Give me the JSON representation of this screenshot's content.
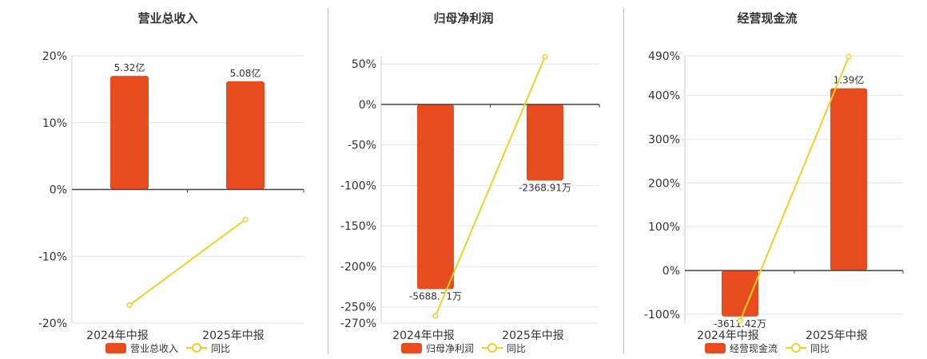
{
  "colors": {
    "bar": "#e84c1e",
    "line": "#f2d023",
    "grid": "#e4e4ee",
    "axis": "#444444",
    "text": "#333333",
    "title": "#333333"
  },
  "chart_data": [
    {
      "type": "bar",
      "title": "营业总收入",
      "categories": [
        "2024年中报",
        "2025年中报"
      ],
      "series": [
        {
          "name": "营业总收入",
          "type": "bar",
          "labels": [
            "5.32亿",
            "5.08亿"
          ]
        },
        {
          "name": "同比",
          "type": "line",
          "values": [
            -17.3,
            -4.5
          ]
        }
      ],
      "y_ticks": [
        "20%",
        "10%",
        "0%",
        "-10%",
        "-20%"
      ],
      "y_tick_values": [
        20,
        10,
        0,
        -10,
        -20
      ],
      "ylim": [
        -20,
        20
      ],
      "bar_heights": [
        17,
        16.2
      ],
      "legend": {
        "position": "bottom",
        "items": [
          "营业总收入",
          "同比"
        ]
      }
    },
    {
      "type": "bar",
      "title": "归母净利润",
      "categories": [
        "2024年中报",
        "2025年中报"
      ],
      "series": [
        {
          "name": "归母净利润",
          "type": "bar",
          "labels": [
            "-5688.71万",
            "-2368.91万"
          ]
        },
        {
          "name": "同比",
          "type": "line",
          "values": [
            -261,
            59
          ]
        }
      ],
      "y_ticks": [
        "50%",
        "0%",
        "-50%",
        "-100%",
        "-150%",
        "-200%",
        "-250%",
        "-270%"
      ],
      "y_tick_values": [
        50,
        0,
        -50,
        -100,
        -150,
        -200,
        -250,
        -270
      ],
      "ylim": [
        -270,
        60
      ],
      "bar_heights": [
        -228,
        -94
      ],
      "legend": {
        "position": "bottom",
        "items": [
          "归母净利润",
          "同比"
        ]
      }
    },
    {
      "type": "bar",
      "title": "经营现金流",
      "categories": [
        "2024年中报",
        "2025年中报"
      ],
      "series": [
        {
          "name": "经营现金流",
          "type": "bar",
          "labels": [
            "-3611.42万",
            "1.39亿"
          ]
        },
        {
          "name": "同比",
          "type": "line",
          "values": [
            -115,
            488
          ]
        }
      ],
      "y_ticks": [
        "490%",
        "400%",
        "300%",
        "200%",
        "100%",
        "0%",
        "-100%"
      ],
      "y_tick_values": [
        490,
        400,
        300,
        200,
        100,
        0,
        -100
      ],
      "ylim": [
        -120,
        490
      ],
      "bar_heights": [
        -105,
        416
      ],
      "legend": {
        "position": "bottom",
        "items": [
          "经营现金流",
          "同比"
        ]
      }
    }
  ]
}
